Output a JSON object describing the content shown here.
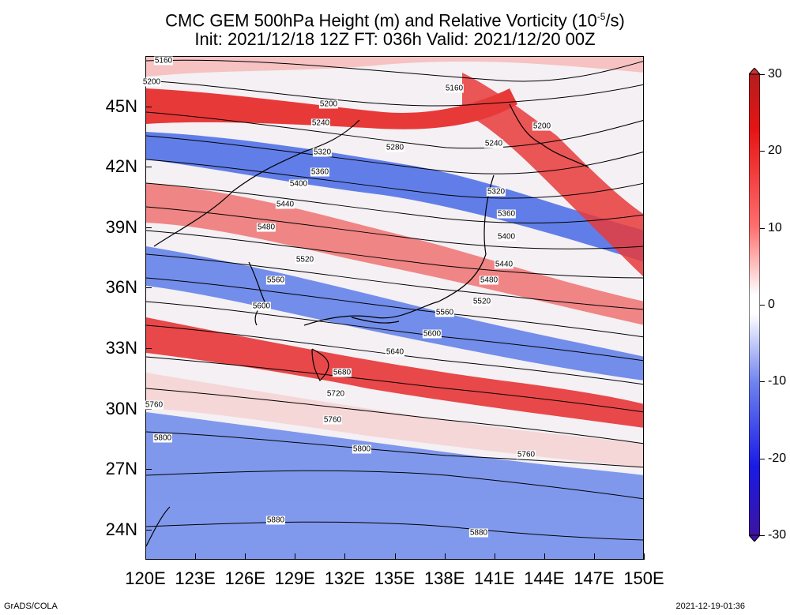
{
  "title": {
    "line1": "CMC GEM 500hPa Height (m) and Relative Vorticity (10",
    "line1_sup": "-5",
    "line1_end": "/s)",
    "line2": "Init: 2021/12/18 12Z  FT: 036h  Valid: 2021/12/20 00Z"
  },
  "axes": {
    "lat_labels": [
      "45N",
      "42N",
      "39N",
      "36N",
      "33N",
      "30N",
      "27N",
      "24N"
    ],
    "lat_values": [
      45,
      42,
      39,
      36,
      33,
      30,
      27,
      24
    ],
    "lon_labels": [
      "120E",
      "123E",
      "126E",
      "129E",
      "132E",
      "135E",
      "138E",
      "141E",
      "144E",
      "147E",
      "150E"
    ],
    "lon_values": [
      120,
      123,
      126,
      129,
      132,
      135,
      138,
      141,
      144,
      147,
      150
    ],
    "lon_range": [
      120,
      150
    ],
    "lat_range": [
      22.5,
      47.5
    ]
  },
  "colorbar": {
    "labels": [
      "30",
      "20",
      "10",
      "0",
      "-10",
      "-20",
      "-30"
    ],
    "values": [
      30,
      20,
      10,
      0,
      -10,
      -20,
      -30
    ],
    "top_color": "#c83232",
    "bottom_color": "#3c14a0"
  },
  "contours": {
    "labels": [
      "5160",
      "5200",
      "5200",
      "5240",
      "5160",
      "5200",
      "5240",
      "5280",
      "5320",
      "5360",
      "5400",
      "5440",
      "5480",
      "5520",
      "5560",
      "5600",
      "5640",
      "5680",
      "5720",
      "5760",
      "5760",
      "5800",
      "5800",
      "5880",
      "5880",
      "5320",
      "5360",
      "5400",
      "5440",
      "5480",
      "5520",
      "5560",
      "5600",
      "5760"
    ]
  },
  "colors": {
    "positive": "#e83030",
    "negative": "#3c5ae6",
    "neutral": "#ffffff",
    "contour": "#000000"
  },
  "footer": {
    "left": "GrADS/COLA",
    "right": "2021-12-19-01:36"
  }
}
